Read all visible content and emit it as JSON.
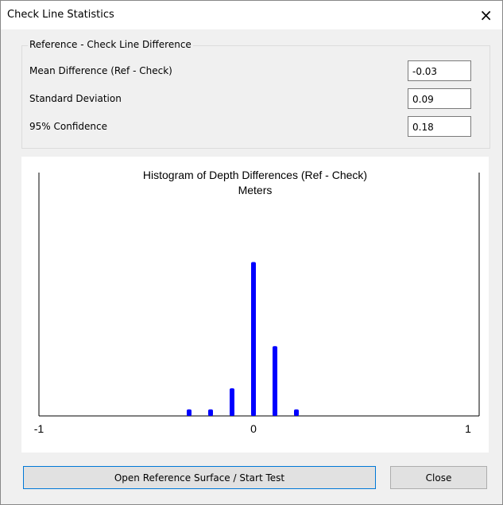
{
  "window": {
    "title": "Check Line Statistics",
    "close": "×"
  },
  "group": {
    "title": "Reference - Check Line Difference",
    "rows": [
      {
        "label": "Mean Difference (Ref - Check)",
        "value": "-0.03"
      },
      {
        "label": "Standard Deviation",
        "value": "0.09"
      },
      {
        "label": "95% Confidence",
        "value": "0.18"
      }
    ]
  },
  "chart_data": {
    "type": "bar",
    "title": "Histogram of Depth Differences (Ref - Check)",
    "subtitle": "Meters",
    "x": [
      -0.3,
      -0.2,
      -0.1,
      0,
      0.1,
      0.2
    ],
    "values": [
      1,
      1,
      6,
      36,
      16,
      1
    ],
    "color": "#0000ff",
    "xlim": [
      -1,
      1
    ],
    "xticks": [
      -1,
      0,
      1
    ],
    "ylim": [
      0,
      58
    ]
  },
  "buttons": [
    "Open Reference Surface / Start Test",
    "Close"
  ]
}
